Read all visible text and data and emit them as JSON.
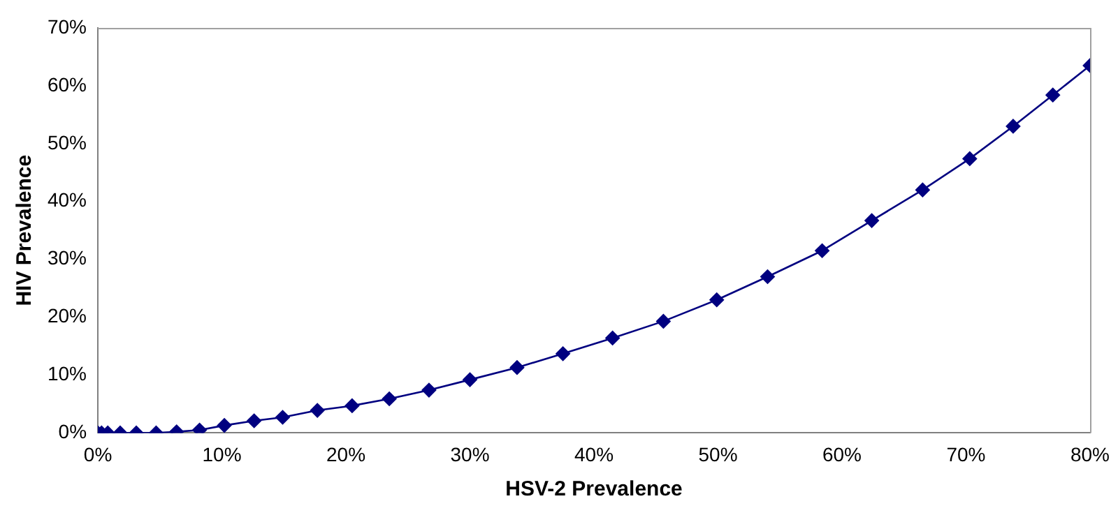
{
  "chart_data": {
    "type": "line",
    "xlabel": "HSV-2 Prevalence",
    "ylabel": "HIV Prevalence",
    "x": [
      0,
      0.3,
      0.8,
      1.8,
      3.1,
      4.7,
      6.35,
      8.2,
      10.2,
      12.6,
      14.9,
      17.7,
      20.5,
      23.5,
      26.7,
      30.0,
      33.8,
      37.5,
      41.5,
      45.6,
      49.9,
      54.0,
      58.4,
      62.4,
      66.5,
      70.3,
      73.8,
      77.0,
      80
    ],
    "series": [
      {
        "color": "#000080",
        "values": [
          0,
          0,
          0,
          0,
          0,
          0,
          0.2,
          0.5,
          1.3,
          2.1,
          2.7,
          3.9,
          4.7,
          5.9,
          7.4,
          9.2,
          11.3,
          13.7,
          16.4,
          19.3,
          23.0,
          27.0,
          31.5,
          36.7,
          42.0,
          47.4,
          53.0,
          58.4,
          63.5
        ]
      }
    ],
    "xlim": [
      0,
      80
    ],
    "xticks": [
      {
        "value": 0,
        "label": "0%"
      },
      {
        "value": 10,
        "label": "10%"
      },
      {
        "value": 20,
        "label": "20%"
      },
      {
        "value": 30,
        "label": "30%"
      },
      {
        "value": 40,
        "label": "40%"
      },
      {
        "value": 50,
        "label": "50%"
      },
      {
        "value": 60,
        "label": "60%"
      },
      {
        "value": 70,
        "label": "70%"
      },
      {
        "value": 80,
        "label": "80%"
      }
    ],
    "ylim": [
      0,
      70
    ],
    "yticks": [
      {
        "value": 0,
        "label": "0%"
      },
      {
        "value": 10,
        "label": "10%"
      },
      {
        "value": 20,
        "label": "20%"
      },
      {
        "value": 30,
        "label": "30%"
      },
      {
        "value": 40,
        "label": "40%"
      },
      {
        "value": 50,
        "label": "50%"
      },
      {
        "value": 60,
        "label": "60%"
      },
      {
        "value": 70,
        "label": "70%"
      }
    ],
    "grid": false,
    "legend": false,
    "marker": "diamond",
    "line_style": "solid"
  }
}
